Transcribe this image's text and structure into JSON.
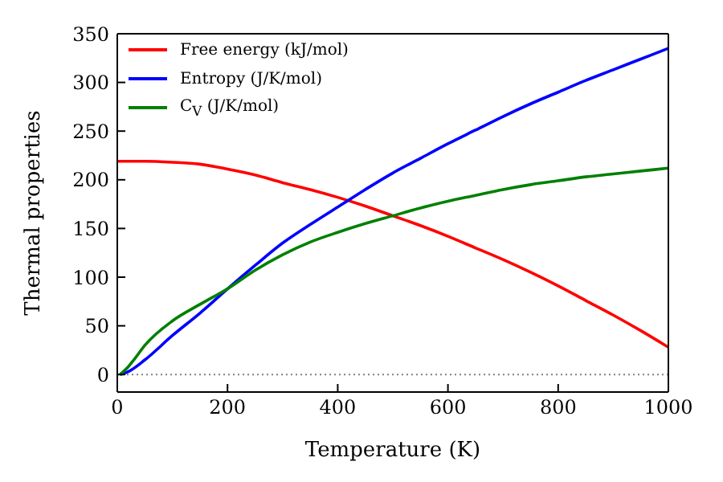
{
  "chart_data": {
    "type": "line",
    "xlabel": "Temperature (K)",
    "ylabel": "Thermal properties",
    "xlim": [
      0,
      1000
    ],
    "xticks": [
      0,
      200,
      400,
      600,
      800,
      1000
    ],
    "ylim": [
      -18,
      350
    ],
    "yticks": [
      0,
      50,
      100,
      150,
      200,
      250,
      300,
      350
    ],
    "legend": "top left",
    "marker": "none",
    "line_style": "solid",
    "ref_lines": [
      {
        "axis": "y",
        "value": 0,
        "color": "#808080",
        "line_style": "dotted"
      }
    ],
    "series": [
      {
        "name": "Free energy (kJ/mol)",
        "color": "#ff0000",
        "x": [
          0,
          50,
          100,
          150,
          200,
          250,
          300,
          350,
          400,
          450,
          500,
          550,
          600,
          650,
          700,
          750,
          800,
          850,
          900,
          950,
          1000
        ],
        "values": [
          219,
          219,
          218,
          216,
          211,
          205,
          197,
          190,
          182,
          173,
          163,
          153,
          142,
          130,
          118,
          105,
          91,
          76,
          61,
          45,
          28
        ]
      },
      {
        "name": "Entropy (J/K/mol)",
        "color": "#0000ff",
        "x": [
          5,
          20,
          50,
          100,
          150,
          200,
          250,
          300,
          350,
          400,
          450,
          500,
          550,
          600,
          650,
          700,
          750,
          800,
          850,
          900,
          950,
          1000
        ],
        "values": [
          0,
          3,
          15,
          40,
          63,
          88,
          112,
          135,
          154,
          172,
          190,
          207,
          222,
          237,
          251,
          265,
          278,
          290,
          302,
          313,
          324,
          335
        ]
      },
      {
        "name": "C$_{V}$ (J/K/mol)",
        "color": "#008000",
        "x": [
          5,
          20,
          30,
          50,
          100,
          150,
          200,
          250,
          300,
          350,
          400,
          450,
          500,
          550,
          600,
          650,
          700,
          750,
          800,
          850,
          900,
          950,
          1000
        ],
        "values": [
          0,
          8,
          15,
          30,
          55,
          72,
          88,
          107,
          123,
          136,
          146,
          155,
          163,
          171,
          178,
          184,
          190,
          195,
          199,
          203,
          206,
          209,
          212
        ]
      }
    ]
  }
}
